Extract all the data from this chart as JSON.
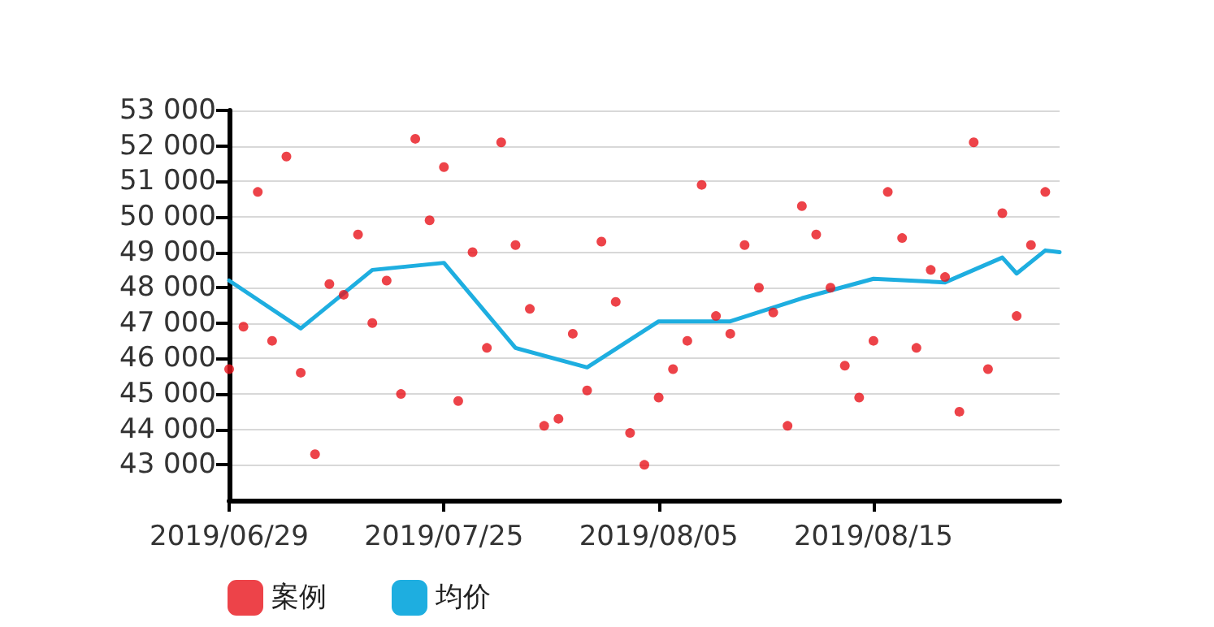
{
  "chart_data": {
    "type": "scatter",
    "categories": [
      "2019/06/29",
      null,
      null,
      null,
      null,
      null,
      null,
      null,
      null,
      null,
      null,
      null,
      null,
      null,
      null,
      "2019/07/25",
      null,
      null,
      null,
      null,
      null,
      null,
      null,
      null,
      null,
      null,
      null,
      null,
      null,
      null,
      "2019/08/05",
      null,
      null,
      null,
      null,
      null,
      null,
      null,
      null,
      null,
      null,
      null,
      null,
      null,
      null,
      "2019/08/15",
      null,
      null,
      null,
      null,
      null,
      null,
      null,
      null,
      null,
      null,
      null,
      null,
      null
    ],
    "series": [
      {
        "name": "案例",
        "marker": "circle",
        "color": "#e8141c",
        "values": [
          45700,
          46900,
          50700,
          46500,
          51700,
          45600,
          43300,
          48100,
          47800,
          49500,
          47000,
          48200,
          45000,
          52200,
          49900,
          51400,
          44800,
          49000,
          46300,
          52100,
          49200,
          47400,
          44100,
          44300,
          46700,
          45100,
          49300,
          47600,
          43900,
          43000,
          44900,
          45700,
          46500,
          50900,
          47200,
          46700,
          49200,
          48000,
          47300,
          44100,
          50300,
          49500,
          48000,
          45800,
          44900,
          46500,
          50700,
          49400,
          46300,
          48500,
          48300,
          44500,
          52100,
          45700,
          50100,
          47200,
          49200,
          50700,
          null
        ]
      },
      {
        "name": "均价",
        "type": "line",
        "marker": "none",
        "color": "#1eaee0",
        "values": [
          48200,
          null,
          null,
          null,
          null,
          46850,
          null,
          null,
          null,
          null,
          48500,
          null,
          null,
          null,
          null,
          48700,
          null,
          null,
          null,
          null,
          46300,
          null,
          null,
          null,
          null,
          45750,
          null,
          null,
          null,
          null,
          47050,
          null,
          null,
          null,
          null,
          47050,
          null,
          null,
          null,
          null,
          47700,
          null,
          null,
          null,
          null,
          48250,
          null,
          null,
          null,
          null,
          48150,
          null,
          null,
          null,
          48850,
          48400,
          null,
          49050,
          49000
        ]
      }
    ],
    "ylim": [
      42000,
      53000
    ],
    "yticks": [
      {
        "value": 43000,
        "label": "43 000"
      },
      {
        "value": 44000,
        "label": "44 000"
      },
      {
        "value": 45000,
        "label": "45 000"
      },
      {
        "value": 46000,
        "label": "46 000"
      },
      {
        "value": 47000,
        "label": "47 000"
      },
      {
        "value": 48000,
        "label": "48 000"
      },
      {
        "value": 49000,
        "label": "49 000"
      },
      {
        "value": 50000,
        "label": "50 000"
      },
      {
        "value": 51000,
        "label": "51 000"
      },
      {
        "value": 52000,
        "label": "52 000"
      },
      {
        "value": 53000,
        "label": "53 000"
      }
    ],
    "grid": "y",
    "legend": "bottom left",
    "line_style": "solid"
  }
}
